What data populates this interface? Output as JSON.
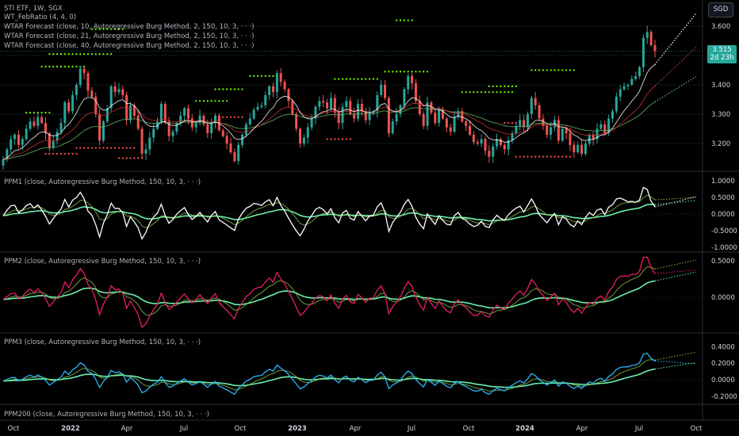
{
  "header": {
    "symbol": "STI ETF, 1W, SGX",
    "indicators": [
      "WT_FebRatio (4, 4, 0)",
      "WTAR Forecast (close, 10, Autoregressive Burg Method, 2, 150, 10, 3, · · ·)",
      "WTAR Forecast (close, 21, Autoregressive Burg Method, 2, 150, 10, 3, · · ·)",
      "WTAR Forecast (close, 40, Autoregressive Burg Method, 2, 150, 10, 3, · · ·)"
    ]
  },
  "currency_button": "SGD",
  "last_price": {
    "value": "3.515",
    "countdown": "2d 23h"
  },
  "panes": [
    {
      "label": "PPM1 (close, Autoregressive Burg Method, 150, 10, 3, · · ·)",
      "ticks": [
        "1.0000",
        "0.5000",
        "0.0000",
        "-0.5000",
        "-1.0000"
      ]
    },
    {
      "label": "PPM2 (close, Autoregressive Burg Method, 150, 10, 3, · · ·)",
      "ticks": [
        "0.5000",
        "0.0000"
      ]
    },
    {
      "label": "PPM3 (close, Autoregressive Burg Method, 150, 10, 3, · · ·)",
      "ticks": [
        "0.4000",
        "0.2000",
        "0.0000",
        "-0.2000"
      ]
    },
    {
      "label": "PPM200 (close, Autoregressive Burg Method, 150, 10, 3, · · ·)",
      "ticks": []
    }
  ],
  "colors": {
    "up": "#26a69a",
    "down": "#ef5350",
    "bg": "#000000",
    "wt10": "#ffffff",
    "wt21": "#d32f2f",
    "wt40": "#66bb6a",
    "ppm1": "#ffffff",
    "ppm2": "#e91e63",
    "ppm3": "#29b6f6",
    "smooth_fast": "#8bc34a",
    "smooth_slow": "#69f0ae",
    "dots_green": "#76ff03",
    "dots_red": "#ff5252"
  },
  "chart_data": {
    "type": "candlestick",
    "interval": "1W",
    "price_axis": {
      "ticks": [
        "3.600",
        "3.500",
        "3.400",
        "3.300",
        "3.200"
      ]
    },
    "x_axis_labels": [
      {
        "label": "Oct",
        "bold": false
      },
      {
        "label": "2022",
        "bold": true
      },
      {
        "label": "Apr",
        "bold": false
      },
      {
        "label": "Jul",
        "bold": false
      },
      {
        "label": "Oct",
        "bold": false
      },
      {
        "label": "2023",
        "bold": true
      },
      {
        "label": "Apr",
        "bold": false
      },
      {
        "label": "Jul",
        "bold": false
      },
      {
        "label": "Oct",
        "bold": false
      },
      {
        "label": "2024",
        "bold": true
      },
      {
        "label": "Apr",
        "bold": false
      },
      {
        "label": "Jul",
        "bold": false
      },
      {
        "label": "Oct",
        "bold": false
      }
    ],
    "closes": [
      3.145,
      3.18,
      3.215,
      3.23,
      3.195,
      3.215,
      3.25,
      3.275,
      3.26,
      3.29,
      3.27,
      3.235,
      3.185,
      3.21,
      3.24,
      3.27,
      3.34,
      3.31,
      3.365,
      3.4,
      3.455,
      3.44,
      3.38,
      3.36,
      3.3,
      3.21,
      3.275,
      3.32,
      3.395,
      3.375,
      3.385,
      3.365,
      3.28,
      3.33,
      3.295,
      3.25,
      3.165,
      3.18,
      3.22,
      3.25,
      3.275,
      3.335,
      3.275,
      3.225,
      3.24,
      3.27,
      3.295,
      3.32,
      3.285,
      3.255,
      3.27,
      3.295,
      3.265,
      3.235,
      3.27,
      3.295,
      3.245,
      3.225,
      3.2,
      3.17,
      3.14,
      3.195,
      3.23,
      3.265,
      3.285,
      3.315,
      3.325,
      3.33,
      3.365,
      3.395,
      3.375,
      3.44,
      3.41,
      3.385,
      3.345,
      3.3,
      3.25,
      3.2,
      3.22,
      3.255,
      3.285,
      3.325,
      3.345,
      3.34,
      3.32,
      3.355,
      3.305,
      3.27,
      3.325,
      3.345,
      3.3,
      3.285,
      3.335,
      3.31,
      3.28,
      3.305,
      3.31,
      3.365,
      3.4,
      3.355,
      3.235,
      3.275,
      3.3,
      3.33,
      3.385,
      3.43,
      3.405,
      3.345,
      3.3,
      3.26,
      3.34,
      3.305,
      3.27,
      3.315,
      3.285,
      3.255,
      3.24,
      3.29,
      3.31,
      3.275,
      3.26,
      3.23,
      3.205,
      3.2,
      3.215,
      3.175,
      3.155,
      3.19,
      3.215,
      3.195,
      3.18,
      3.21,
      3.235,
      3.26,
      3.28,
      3.255,
      3.3,
      3.355,
      3.33,
      3.285,
      3.26,
      3.23,
      3.255,
      3.28,
      3.21,
      3.25,
      3.235,
      3.195,
      3.17,
      3.195,
      3.165,
      3.2,
      3.23,
      3.215,
      3.25,
      3.265,
      3.235,
      3.285,
      3.31,
      3.36,
      3.385,
      3.395,
      3.4,
      3.42,
      3.43,
      3.46,
      3.56,
      3.58,
      3.535,
      3.515
    ]
  }
}
